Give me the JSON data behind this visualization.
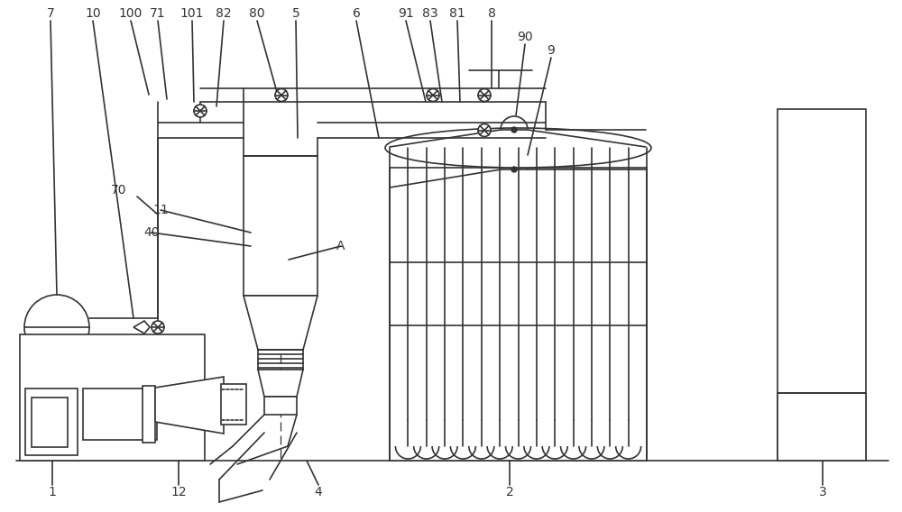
{
  "bg_color": "#ffffff",
  "line_color": "#333333",
  "lw": 1.2
}
